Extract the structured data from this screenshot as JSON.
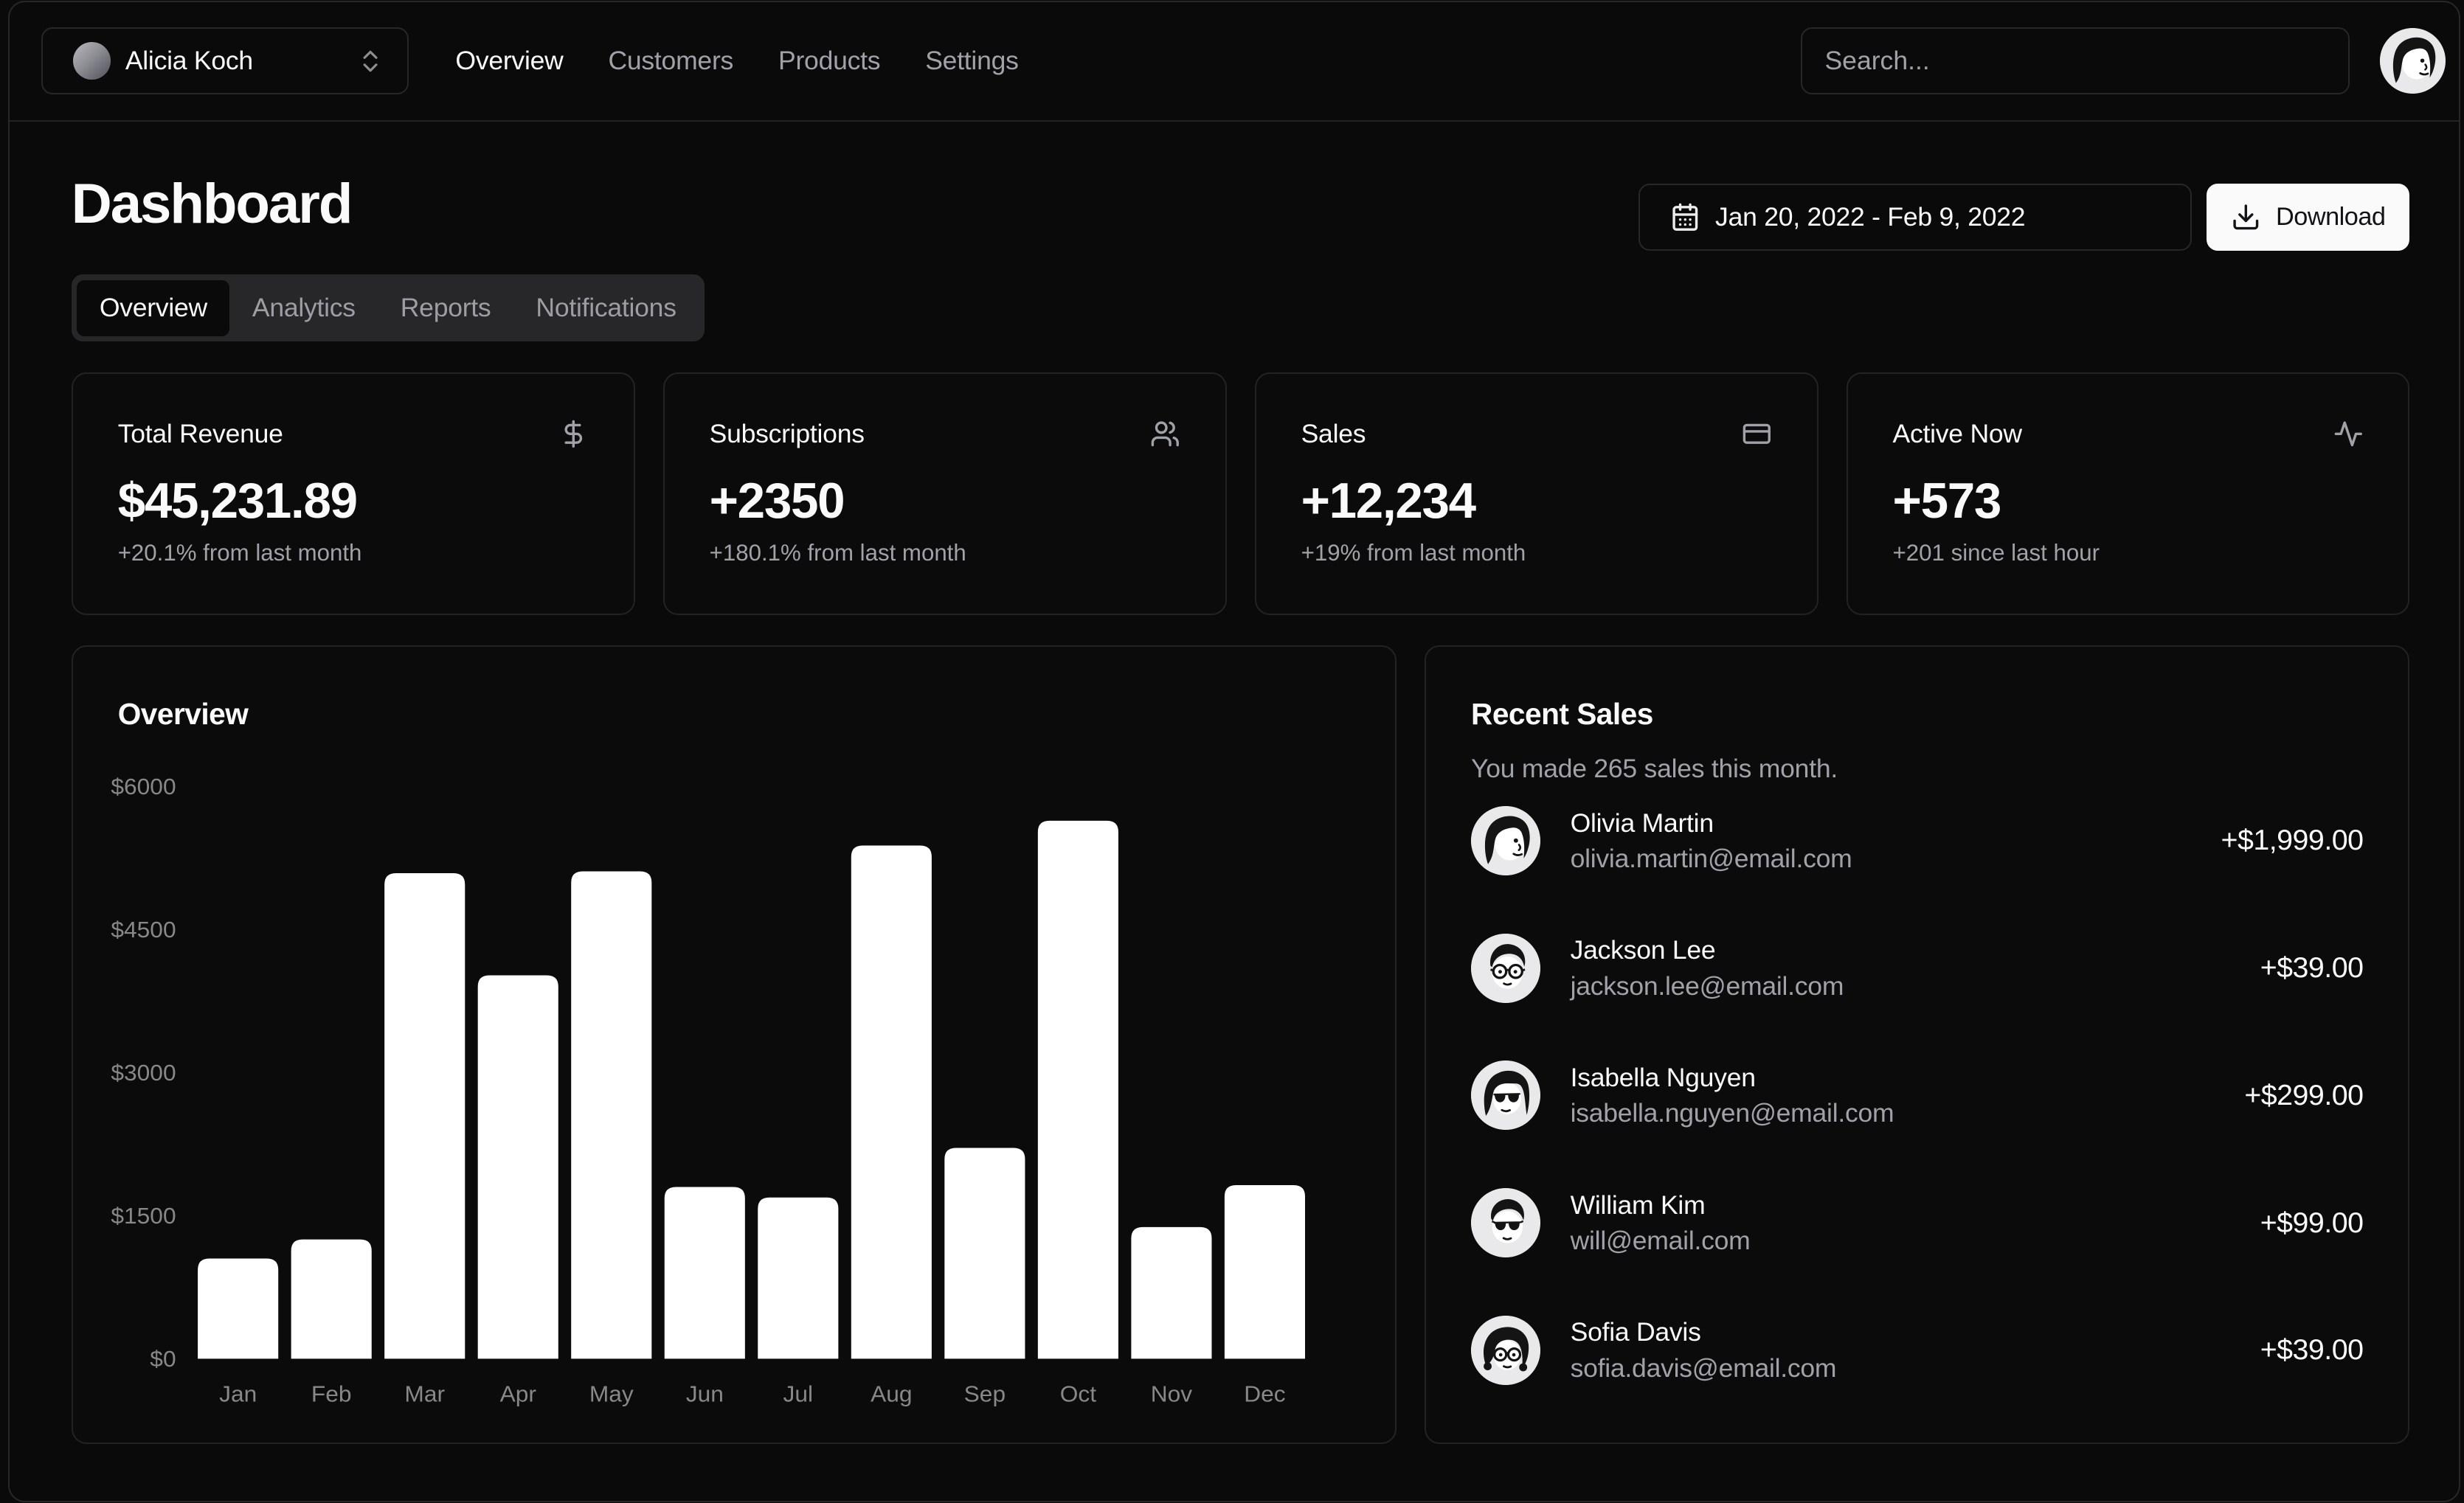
{
  "colors": {
    "background": "#0a0a0b",
    "border": "#27272a",
    "foreground": "#fafafa",
    "muted_foreground": "#a1a1aa",
    "tabs_bg": "#27272a",
    "primary_button_bg": "#fafafa",
    "primary_button_fg": "#131316",
    "chart_bar": "#ffffff",
    "chart_tick": "#888888"
  },
  "header": {
    "team_switcher": {
      "name": "Alicia Koch",
      "avatar": "gradient",
      "icon": "chevrons-up-down"
    },
    "nav": [
      {
        "label": "Overview",
        "active": true
      },
      {
        "label": "Customers",
        "active": false
      },
      {
        "label": "Products",
        "active": false
      },
      {
        "label": "Settings",
        "active": false
      }
    ],
    "search": {
      "placeholder": "Search...",
      "value": ""
    },
    "user_avatar": "woman-bob"
  },
  "page": {
    "title": "Dashboard",
    "date_range": "Jan 20, 2022 - Feb 9, 2022",
    "download_label": "Download"
  },
  "tabs": [
    {
      "label": "Overview",
      "active": true
    },
    {
      "label": "Analytics",
      "active": false
    },
    {
      "label": "Reports",
      "active": false
    },
    {
      "label": "Notifications",
      "active": false
    }
  ],
  "stats": [
    {
      "title": "Total Revenue",
      "icon": "dollar-sign",
      "value": "$45,231.89",
      "sub": "+20.1% from last month"
    },
    {
      "title": "Subscriptions",
      "icon": "users",
      "value": "+2350",
      "sub": "+180.1% from last month"
    },
    {
      "title": "Sales",
      "icon": "credit-card",
      "value": "+12,234",
      "sub": "+19% from last month"
    },
    {
      "title": "Active Now",
      "icon": "activity",
      "value": "+573",
      "sub": "+201 since last hour"
    }
  ],
  "overview": {
    "title": "Overview",
    "chart_data": {
      "type": "bar",
      "categories": [
        "Jan",
        "Feb",
        "Mar",
        "Apr",
        "May",
        "Jun",
        "Jul",
        "Aug",
        "Sep",
        "Oct",
        "Nov",
        "Dec"
      ],
      "values": [
        1050,
        1250,
        5090,
        4020,
        5110,
        1800,
        1690,
        5380,
        2210,
        5640,
        1380,
        1820
      ],
      "title": "Overview",
      "xlabel": "",
      "ylabel": "",
      "y_ticks": [
        "$0",
        "$1500",
        "$3000",
        "$4500",
        "$6000"
      ],
      "y_tick_values": [
        0,
        1500,
        3000,
        4500,
        6000
      ],
      "ylim": [
        0,
        6000
      ],
      "grid": false,
      "bar_color": "#ffffff",
      "tick_color": "#888888"
    }
  },
  "recent_sales": {
    "title": "Recent Sales",
    "description": "You made 265 sales this month.",
    "items": [
      {
        "name": "Olivia Martin",
        "email": "olivia.martin@email.com",
        "amount": "+$1,999.00",
        "avatar": "woman-bob"
      },
      {
        "name": "Jackson Lee",
        "email": "jackson.lee@email.com",
        "amount": "+$39.00",
        "avatar": "man-glasses"
      },
      {
        "name": "Isabella Nguyen",
        "email": "isabella.nguyen@email.com",
        "amount": "+$299.00",
        "avatar": "woman-shades"
      },
      {
        "name": "William Kim",
        "email": "will@email.com",
        "amount": "+$99.00",
        "avatar": "man-shades"
      },
      {
        "name": "Sofia Davis",
        "email": "sofia.davis@email.com",
        "amount": "+$39.00",
        "avatar": "woman-curly"
      }
    ]
  }
}
